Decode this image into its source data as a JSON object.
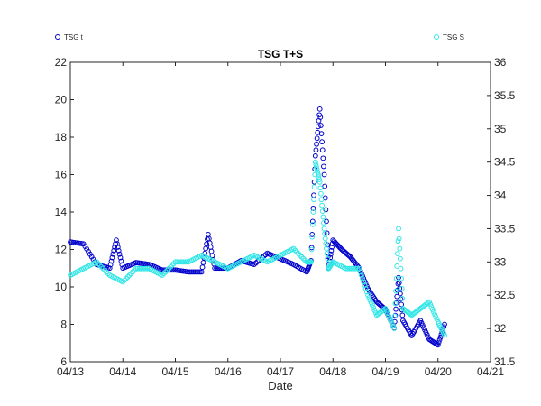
{
  "chart_data": {
    "type": "scatter",
    "title": "TSG T+S",
    "xlabel": "Date",
    "ylabel_left": "",
    "ylabel_right": "",
    "x_ticks": [
      "04/13",
      "04/14",
      "04/15",
      "04/16",
      "04/17",
      "04/18",
      "04/19",
      "04/20",
      "04/21"
    ],
    "xlim": [
      "04/13",
      "04/21"
    ],
    "ylim_left": [
      6,
      22
    ],
    "y_ticks_left": [
      "6",
      "8",
      "10",
      "12",
      "14",
      "16",
      "18",
      "20",
      "22"
    ],
    "ylim_right": [
      31.5,
      36
    ],
    "y_ticks_right": [
      "31.5",
      "32",
      "32.5",
      "33",
      "33.5",
      "34",
      "34.5",
      "35",
      "35.5",
      "36"
    ],
    "grid": false,
    "legend": [
      {
        "name": "TSG t",
        "placement": "top-left"
      },
      {
        "name": "TSG S",
        "placement": "top-right"
      }
    ],
    "series": [
      {
        "name": "TSG t",
        "axis": "left",
        "color": "#0000cc",
        "x": [
          "04/13 00:00",
          "04/13 06:00",
          "04/13 12:00",
          "04/13 18:00",
          "04/13 21:00",
          "04/14 00:00",
          "04/14 06:00",
          "04/14 12:00",
          "04/14 18:00",
          "04/15 00:00",
          "04/15 06:00",
          "04/15 12:00",
          "04/15 15:00",
          "04/15 18:00",
          "04/16 00:00",
          "04/16 06:00",
          "04/16 12:00",
          "04/16 18:00",
          "04/17 00:00",
          "04/17 06:00",
          "04/17 12:00",
          "04/17 14:00",
          "04/17 16:00",
          "04/17 18:00",
          "04/17 20:00",
          "04/17 22:00",
          "04/18 00:00",
          "04/18 04:00",
          "04/18 08:00",
          "04/18 12:00",
          "04/18 16:00",
          "04/18 20:00",
          "04/19 00:00",
          "04/19 04:00",
          "04/19 06:00",
          "04/19 08:00",
          "04/19 12:00",
          "04/19 16:00",
          "04/19 20:00",
          "04/20 00:00",
          "04/20 03:00"
        ],
        "y": [
          12.4,
          12.3,
          11.2,
          11.0,
          12.5,
          11.0,
          11.3,
          11.2,
          10.9,
          10.9,
          10.8,
          10.8,
          12.8,
          11.0,
          11.0,
          11.4,
          11.2,
          11.8,
          11.5,
          11.2,
          10.8,
          11.4,
          17.0,
          19.5,
          16.0,
          11.0,
          12.5,
          12.0,
          11.6,
          11.0,
          9.9,
          9.2,
          8.8,
          7.8,
          10.5,
          8.2,
          7.4,
          8.2,
          7.2,
          6.9,
          8.0
        ]
      },
      {
        "name": "TSG S",
        "axis": "right",
        "color": "#33e6e6",
        "x": [
          "04/13 00:00",
          "04/13 06:00",
          "04/13 12:00",
          "04/13 18:00",
          "04/14 00:00",
          "04/14 06:00",
          "04/14 12:00",
          "04/14 18:00",
          "04/15 00:00",
          "04/15 06:00",
          "04/15 12:00",
          "04/15 18:00",
          "04/16 00:00",
          "04/16 06:00",
          "04/16 12:00",
          "04/16 18:00",
          "04/17 00:00",
          "04/17 06:00",
          "04/17 12:00",
          "04/17 14:00",
          "04/17 16:00",
          "04/17 18:00",
          "04/17 20:00",
          "04/17 22:00",
          "04/18 00:00",
          "04/18 06:00",
          "04/18 12:00",
          "04/18 16:00",
          "04/18 20:00",
          "04/19 00:00",
          "04/19 04:00",
          "04/19 06:00",
          "04/19 08:00",
          "04/19 12:00",
          "04/19 16:00",
          "04/19 20:00",
          "04/20 00:00",
          "04/20 03:00"
        ],
        "y": [
          32.8,
          32.9,
          33.0,
          32.8,
          32.7,
          32.9,
          32.9,
          32.8,
          33.0,
          33.0,
          33.1,
          33.0,
          32.9,
          33.0,
          33.1,
          33.0,
          33.1,
          33.2,
          33.0,
          33.0,
          34.5,
          34.2,
          33.5,
          32.9,
          33.0,
          32.9,
          32.9,
          32.5,
          32.2,
          32.3,
          32.0,
          33.5,
          32.3,
          32.2,
          32.3,
          32.4,
          32.1,
          31.9
        ]
      }
    ]
  }
}
